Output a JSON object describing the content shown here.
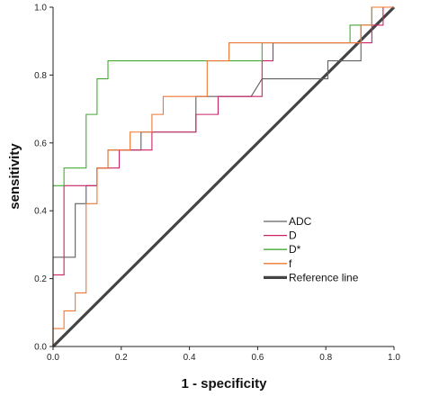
{
  "chart_data": {
    "type": "line",
    "title": "",
    "xlabel": "1 - specificity",
    "ylabel": "sensitivity",
    "xlim": [
      0,
      1
    ],
    "ylim": [
      0,
      1
    ],
    "xticks": [
      "0.0",
      "0.2",
      "0.4",
      "0.6",
      "0.8",
      "1.0"
    ],
    "yticks": [
      "0.0",
      "0.2",
      "0.4",
      "0.6",
      "0.8",
      "1.0"
    ],
    "grid": false,
    "legend_position": "center-right",
    "series": [
      {
        "name": "ADC",
        "color": "#606060",
        "x": [
          0,
          0,
          0.065,
          0.065,
          0.097,
          0.097,
          0.129,
          0.129,
          0.161,
          0.161,
          0.194,
          0.194,
          0.258,
          0.258,
          0.29,
          0.29,
          0.419,
          0.419,
          0.581,
          0.613,
          0.806,
          0.806,
          0.903,
          0.903,
          0.935,
          0.935,
          1
        ],
        "y": [
          0,
          0.263,
          0.263,
          0.421,
          0.421,
          0.474,
          0.474,
          0.526,
          0.526,
          0.579,
          0.579,
          0.579,
          0.579,
          0.632,
          0.632,
          0.632,
          0.632,
          0.737,
          0.737,
          0.789,
          0.789,
          0.842,
          0.842,
          0.947,
          0.947,
          1.0,
          1.0
        ]
      },
      {
        "name": "D",
        "color": "#cc2266",
        "x": [
          0,
          0,
          0.032,
          0.032,
          0.129,
          0.129,
          0.194,
          0.194,
          0.29,
          0.29,
          0.419,
          0.419,
          0.484,
          0.484,
          0.613,
          0.613,
          0.645,
          0.645,
          0.935,
          0.935,
          0.968,
          0.968,
          1
        ],
        "y": [
          0,
          0.211,
          0.211,
          0.474,
          0.474,
          0.526,
          0.526,
          0.579,
          0.579,
          0.632,
          0.632,
          0.684,
          0.684,
          0.737,
          0.737,
          0.842,
          0.842,
          0.895,
          0.895,
          0.947,
          0.947,
          1.0,
          1.0
        ]
      },
      {
        "name": "D*",
        "color": "#44aa33",
        "x": [
          0,
          0,
          0.032,
          0.032,
          0.097,
          0.097,
          0.129,
          0.129,
          0.161,
          0.161,
          0.613,
          0.613,
          0.871,
          0.871,
          0.935,
          0.935,
          1
        ],
        "y": [
          0,
          0.474,
          0.474,
          0.526,
          0.526,
          0.684,
          0.684,
          0.789,
          0.789,
          0.842,
          0.842,
          0.895,
          0.895,
          0.947,
          0.947,
          1.0,
          1.0
        ]
      },
      {
        "name": "f",
        "color": "#ee7733",
        "x": [
          0,
          0,
          0.032,
          0.032,
          0.065,
          0.065,
          0.097,
          0.097,
          0.129,
          0.129,
          0.161,
          0.161,
          0.226,
          0.226,
          0.29,
          0.29,
          0.323,
          0.323,
          0.452,
          0.452,
          0.516,
          0.516,
          0.903,
          0.903,
          0.935,
          0.935,
          1
        ],
        "y": [
          0,
          0.053,
          0.053,
          0.105,
          0.105,
          0.158,
          0.158,
          0.421,
          0.421,
          0.526,
          0.526,
          0.579,
          0.579,
          0.632,
          0.632,
          0.684,
          0.684,
          0.737,
          0.737,
          0.842,
          0.842,
          0.895,
          0.895,
          0.947,
          0.947,
          1.0,
          1.0
        ]
      },
      {
        "name": "Reference line",
        "color": "#444444",
        "x": [
          0,
          1
        ],
        "y": [
          0,
          1
        ]
      }
    ]
  }
}
